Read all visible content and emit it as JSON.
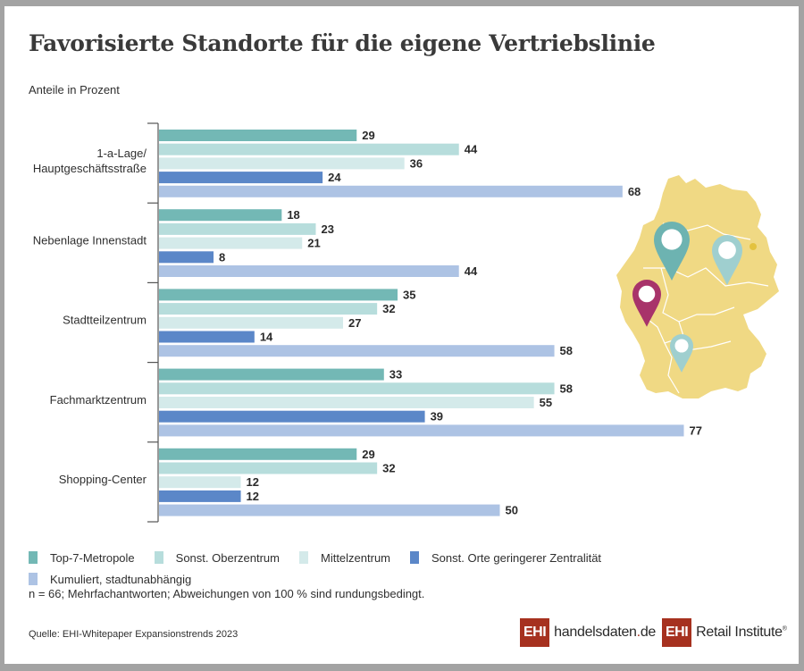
{
  "title": "Favorisierte Standorte für die eigene Vertriebslinie",
  "subtitle": "Anteile in Prozent",
  "chart_data": {
    "type": "bar",
    "orientation": "horizontal",
    "title": "Favorisierte Standorte für die eigene Vertriebslinie",
    "subtitle": "Anteile in Prozent",
    "xlabel": "",
    "ylabel": "",
    "xlim": [
      0,
      100
    ],
    "grid": false,
    "legend_position": "bottom",
    "categories": [
      [
        "1-a-Lage/",
        "Hauptgeschäftsstraße"
      ],
      [
        "Nebenlage Innenstadt"
      ],
      [
        "Stadtteilzentrum"
      ],
      [
        "Fachmarktzentrum"
      ],
      [
        "Shopping-Center"
      ]
    ],
    "series": [
      {
        "name": "Top-7-Metropole",
        "color": "#73b8b5",
        "values": [
          29,
          18,
          35,
          33,
          29
        ]
      },
      {
        "name": "Sonst. Oberzentrum",
        "color": "#b7dddc",
        "values": [
          44,
          23,
          32,
          58,
          32
        ]
      },
      {
        "name": "Mittelzentrum",
        "color": "#d4eaea",
        "values": [
          36,
          21,
          27,
          55,
          12
        ]
      },
      {
        "name": "Sonst. Orte geringerer Zentralität",
        "color": "#5b87c8",
        "values": [
          24,
          8,
          14,
          39,
          12
        ]
      },
      {
        "name": "Kumuliert, stadtunabhängig",
        "color": "#adc3e4",
        "values": [
          68,
          44,
          58,
          77,
          50
        ]
      }
    ]
  },
  "legend": {
    "row1": [
      {
        "label": "Top-7-Metropole",
        "color": "#73b8b5"
      },
      {
        "label": "Sonst. Oberzentrum",
        "color": "#b7dddc"
      },
      {
        "label": "Mittelzentrum",
        "color": "#d4eaea"
      },
      {
        "label": "Sonst. Orte geringerer Zentralität",
        "color": "#5b87c8"
      }
    ],
    "row2": [
      {
        "label": "Kumuliert, stadtunabhängig",
        "color": "#adc3e4"
      }
    ]
  },
  "note": "n = 66; Mehrfachantworten; Abweichungen von 100 % sind rundungsbedingt.",
  "source": "Quelle: EHI-Whitepaper Expansionstrends 2023",
  "logos": {
    "logo1_box": "EHI",
    "logo1_text_main": "handelsdaten",
    "logo1_text_dot": ".",
    "logo1_text_tld": "de",
    "logo2_box": "EHI",
    "logo2_text": "Retail Institute",
    "logo2_reg": "®"
  },
  "map": {
    "icon": "germany-map-icon",
    "pins": [
      {
        "name": "pin-north-west",
        "color": "#6db3b1"
      },
      {
        "name": "pin-east",
        "color": "#9fcfcf"
      },
      {
        "name": "pin-west",
        "color": "#a8336a"
      },
      {
        "name": "pin-south",
        "color": "#9fcfcf"
      }
    ],
    "land_color": "#f0d984"
  }
}
